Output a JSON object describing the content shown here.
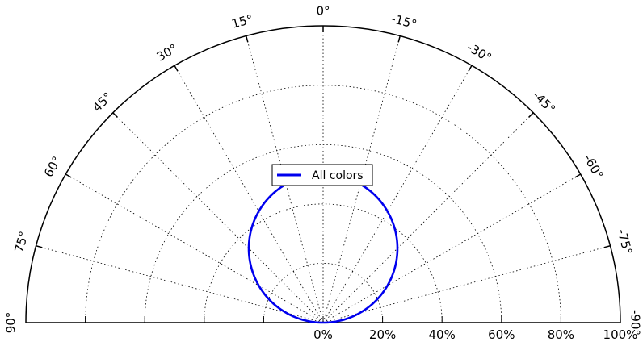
{
  "chart_data": {
    "type": "line",
    "subtype": "polar-half",
    "series": [
      {
        "name": "All colors",
        "color": "#0000ee",
        "curve": "cosine",
        "angle": [
          90,
          75,
          60,
          45,
          30,
          15,
          0,
          -15,
          -30,
          -45,
          -60,
          -75,
          -90
        ],
        "r": [
          0,
          12.9,
          25,
          35.4,
          43.3,
          48.3,
          50,
          48.3,
          43.3,
          35.4,
          25,
          12.9,
          0
        ]
      }
    ],
    "angle_range": [
      -90,
      90
    ],
    "angle_ticks": [
      90,
      75,
      60,
      45,
      30,
      15,
      0,
      -15,
      -30,
      -45,
      -60,
      -75,
      -90
    ],
    "angle_tick_labels": [
      "90°",
      "75°",
      "60°",
      "45°",
      "30°",
      "15°",
      "0°",
      "-15°",
      "-30°",
      "-45°",
      "-60°",
      "-75°",
      "-90°"
    ],
    "radial_range": [
      0,
      100
    ],
    "radial_ticks": [
      0,
      20,
      40,
      60,
      80,
      100
    ],
    "radial_tick_labels": [
      "0%",
      "20%",
      "40%",
      "60%",
      "80%",
      "100%"
    ],
    "grid": true,
    "legend": {
      "placement": "center",
      "entries": [
        "All colors"
      ]
    }
  }
}
